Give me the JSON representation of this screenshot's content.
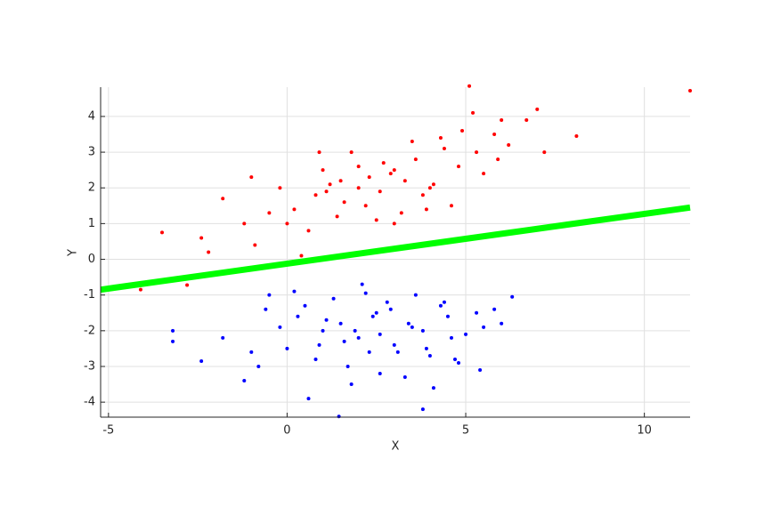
{
  "chart_data": {
    "type": "scatter",
    "xlabel": "X",
    "ylabel": "Y",
    "xlim": [
      -5.22,
      11.28
    ],
    "ylim": [
      -4.42,
      4.82
    ],
    "xticks": [
      -5,
      0,
      5,
      10
    ],
    "yticks": [
      -4,
      -3,
      -2,
      -1,
      0,
      1,
      2,
      3,
      4
    ],
    "grid": true,
    "series": [
      {
        "kind": "points",
        "color": "#ff0000",
        "x": [
          11.28,
          -4.1,
          8.1,
          5.1,
          -2.8,
          -3.5,
          -2.4,
          -1.2,
          -0.5,
          0.2,
          0.8,
          1.2,
          1.6,
          2.0,
          2.3,
          2.6,
          3.0,
          3.3,
          3.6,
          4.0,
          4.4,
          4.8,
          5.3,
          5.8,
          6.2,
          6.7,
          7.2,
          -1.8,
          -0.9,
          0.0,
          0.6,
          1.0,
          1.4,
          1.8,
          2.2,
          2.7,
          3.2,
          3.8,
          4.3,
          4.9,
          5.5,
          6.0,
          -1.0,
          0.4,
          1.5,
          2.5,
          3.5,
          4.6,
          5.9,
          7.0,
          -2.2,
          -0.2,
          0.9,
          2.0,
          3.0,
          4.1,
          5.2,
          1.1,
          2.9,
          3.9
        ],
        "values": [
          4.72,
          -0.85,
          3.45,
          4.85,
          -0.72,
          0.75,
          0.6,
          1.0,
          1.3,
          1.4,
          1.8,
          2.1,
          1.6,
          2.0,
          2.3,
          1.9,
          2.5,
          2.2,
          2.8,
          2.0,
          3.1,
          2.6,
          3.0,
          3.5,
          3.2,
          3.9,
          3.0,
          1.7,
          0.4,
          1.0,
          0.8,
          2.5,
          1.2,
          3.0,
          1.5,
          2.7,
          1.3,
          1.8,
          3.4,
          3.6,
          2.4,
          3.9,
          2.3,
          0.1,
          2.2,
          1.1,
          3.3,
          1.5,
          2.8,
          4.2,
          0.2,
          2.0,
          3.0,
          2.6,
          1.0,
          2.1,
          4.1,
          1.9,
          2.4,
          1.4
        ]
      },
      {
        "kind": "points",
        "color": "#0000ff",
        "x": [
          -3.2,
          -3.2,
          1.45,
          3.8,
          5.4,
          6.3,
          -2.4,
          -1.2,
          -0.5,
          0.0,
          0.5,
          1.0,
          1.5,
          2.0,
          2.5,
          3.0,
          3.5,
          4.0,
          4.5,
          5.0,
          5.8,
          -1.8,
          -0.8,
          0.3,
          0.8,
          1.3,
          1.8,
          2.3,
          2.8,
          3.3,
          3.8,
          4.3,
          4.8,
          6.0,
          -0.2,
          0.6,
          1.1,
          1.6,
          2.1,
          2.6,
          3.1,
          3.6,
          4.1,
          4.6,
          5.3,
          -1.0,
          0.2,
          1.9,
          2.9,
          3.9,
          4.7,
          0.9,
          2.4,
          3.4,
          1.7,
          2.2,
          -0.6,
          4.4,
          5.5,
          2.6
        ],
        "values": [
          -2.0,
          -2.3,
          -4.4,
          -4.2,
          -3.1,
          -1.05,
          -2.85,
          -3.4,
          -1.0,
          -2.5,
          -1.3,
          -2.0,
          -1.8,
          -2.2,
          -1.5,
          -2.4,
          -1.9,
          -2.7,
          -1.6,
          -2.1,
          -1.4,
          -2.2,
          -3.0,
          -1.6,
          -2.8,
          -1.1,
          -3.5,
          -2.6,
          -1.2,
          -3.3,
          -2.0,
          -1.3,
          -2.9,
          -1.8,
          -1.9,
          -3.9,
          -1.7,
          -2.3,
          -0.7,
          -3.2,
          -2.6,
          -1.0,
          -3.6,
          -2.2,
          -1.5,
          -2.6,
          -0.9,
          -2.0,
          -1.4,
          -2.5,
          -2.8,
          -2.4,
          -1.6,
          -1.8,
          -3.0,
          -0.95,
          -1.4,
          -1.2,
          -1.9,
          -2.1
        ]
      },
      {
        "kind": "line",
        "color": "#00ff00",
        "x": [
          -5.22,
          11.28
        ],
        "values": [
          -0.85,
          1.45
        ]
      }
    ]
  }
}
